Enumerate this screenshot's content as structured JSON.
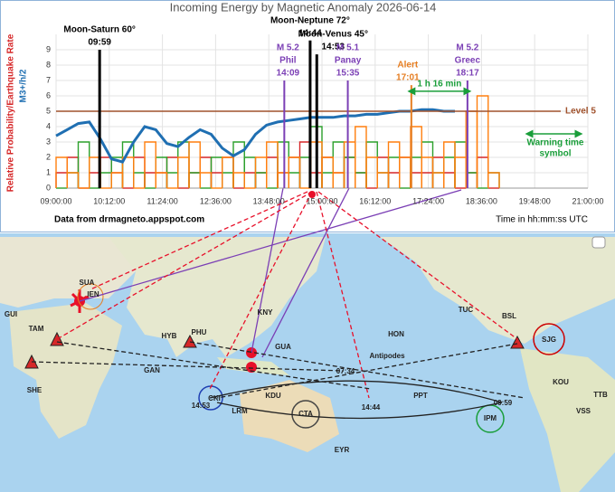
{
  "chart_data": {
    "type": "line",
    "title": "Incoming Energy by Magnetic Anomaly 2026-06-14",
    "ylabel": "Relative Probability/Earthquake Rate",
    "ylabel2": "M3+/h/2",
    "xlabel": "Time in hh:mm:ss UTC",
    "source": "Data from drmagneto.appspot.com",
    "xlim": [
      9,
      21
    ],
    "ylim": [
      0,
      10
    ],
    "yticks": [
      0,
      1,
      2,
      3,
      4,
      5,
      6,
      7,
      8,
      9
    ],
    "xticks": [
      {
        "value": 9,
        "label": "09:00:00"
      },
      {
        "value": 10.2,
        "label": "10:12:00"
      },
      {
        "value": 11.4,
        "label": "11:24:00"
      },
      {
        "value": 12.6,
        "label": "12:36:00"
      },
      {
        "value": 13.8,
        "label": "13:48:00"
      },
      {
        "value": 15,
        "label": "15:00:00"
      },
      {
        "value": 16.2,
        "label": "16:12:00"
      },
      {
        "value": 17.4,
        "label": "17:24:00"
      },
      {
        "value": 18.6,
        "label": "18:36:00"
      },
      {
        "value": 19.8,
        "label": "19:48:00"
      },
      {
        "value": 21,
        "label": "21:00:00"
      }
    ],
    "grid": true,
    "x": [
      9,
      9.25,
      9.5,
      9.75,
      10,
      10.25,
      10.5,
      10.75,
      11,
      11.25,
      11.5,
      11.75,
      12,
      12.25,
      12.5,
      12.75,
      13,
      13.25,
      13.5,
      13.75,
      14,
      14.25,
      14.5,
      14.75,
      15,
      15.25,
      15.5,
      15.75,
      16,
      16.25,
      16.5,
      16.75,
      17,
      17.25,
      17.5,
      17.75,
      18,
      18.25,
      18.5,
      18.75
    ],
    "series": [
      {
        "color": "#1f6fb2",
        "values": [
          3.4,
          3.8,
          4.2,
          4.3,
          3.2,
          1.9,
          1.7,
          3.0,
          4.0,
          3.8,
          2.9,
          2.7,
          3.3,
          3.8,
          3.5,
          2.6,
          2.1,
          2.5,
          3.5,
          4.1,
          4.3,
          4.4,
          4.5,
          4.6,
          4.6,
          4.6,
          4.7,
          4.7,
          4.8,
          4.8,
          4.9,
          5.0,
          5.0,
          5.1,
          5.1,
          5.0,
          5.0,
          null,
          null,
          null
        ]
      },
      {
        "color": "#d62728",
        "style": "step",
        "values": [
          1,
          2,
          0,
          1,
          2,
          1,
          0,
          2,
          1,
          1,
          2,
          0,
          1,
          2,
          1,
          2,
          0,
          1,
          1,
          2,
          1,
          2,
          3,
          1,
          2,
          1,
          2,
          1,
          0,
          2,
          1,
          2,
          1,
          1,
          2,
          1,
          0,
          1,
          2,
          0
        ]
      },
      {
        "color": "#2ca02c",
        "style": "step",
        "values": [
          0,
          1,
          3,
          0,
          1,
          2,
          3,
          1,
          0,
          2,
          1,
          3,
          1,
          0,
          2,
          1,
          3,
          2,
          1,
          0,
          3,
          1,
          2,
          4,
          1,
          3,
          2,
          1,
          3,
          1,
          2,
          0,
          2,
          3,
          1,
          2,
          3,
          1,
          0,
          1
        ]
      },
      {
        "color": "#ff7f0e",
        "style": "step",
        "values": [
          2,
          1,
          0,
          2,
          0,
          1,
          2,
          0,
          3,
          1,
          0,
          2,
          3,
          1,
          0,
          2,
          1,
          0,
          2,
          3,
          1,
          2,
          0,
          3,
          2,
          1,
          3,
          4,
          2,
          1,
          3,
          2,
          4,
          2,
          1,
          3,
          2,
          5,
          6,
          1
        ]
      }
    ],
    "events": [
      {
        "text": [
          "Moon-Saturn 60°",
          "09:59"
        ],
        "x": 9.983,
        "value": 9,
        "color": "#000000"
      },
      {
        "text": [
          "Moon-Neptune 72°",
          "14:44"
        ],
        "x": 14.733,
        "value": 9.6,
        "color": "#000000"
      },
      {
        "text": [
          "Moon-Venus 45°",
          "14:53"
        ],
        "x": 14.883,
        "value": 8.7,
        "color": "#000000"
      },
      {
        "text": [
          "M 5.2",
          "Phil",
          "14:09"
        ],
        "x": 14.15,
        "value": 7,
        "color": "#7b3fb5"
      },
      {
        "text": [
          "M 5.1",
          "Panay",
          "15:35"
        ],
        "x": 15.583,
        "value": 7,
        "color": "#7b3fb5"
      },
      {
        "text": [
          "Alert",
          "17:01"
        ],
        "x": 17.017,
        "value": 6.7,
        "color": "#e67e22"
      },
      {
        "text": [
          "M 5.2",
          "Greec",
          "18:17"
        ],
        "x": 18.283,
        "value": 7,
        "color": "#7b3fb5"
      }
    ],
    "level": {
      "value": 5,
      "label": "Level 5",
      "color": "#a0522d"
    },
    "interval": {
      "from": 17.017,
      "to": 18.283,
      "value": 6.3,
      "label": "1 h 16 min",
      "color": "#1a9e3a"
    },
    "warning": {
      "text": [
        "Warning time",
        "symbol"
      ],
      "color": "#1a9e3a"
    }
  },
  "map": {
    "labels": [
      "SUA",
      "IEN",
      "GUI",
      "TAM",
      "SHE",
      "GAN",
      "HYB",
      "PHU",
      "KNY",
      "GUA",
      "HON",
      "TUC",
      "BSL",
      "SJG",
      "KOU",
      "TTB",
      "VSS",
      "IPM",
      "PPT",
      "CTA",
      "KDU",
      "LRM",
      "CKI",
      "EYR",
      "Antipodes"
    ],
    "times": [
      "07:34",
      "14:53",
      "14:44",
      "09:59"
    ]
  }
}
